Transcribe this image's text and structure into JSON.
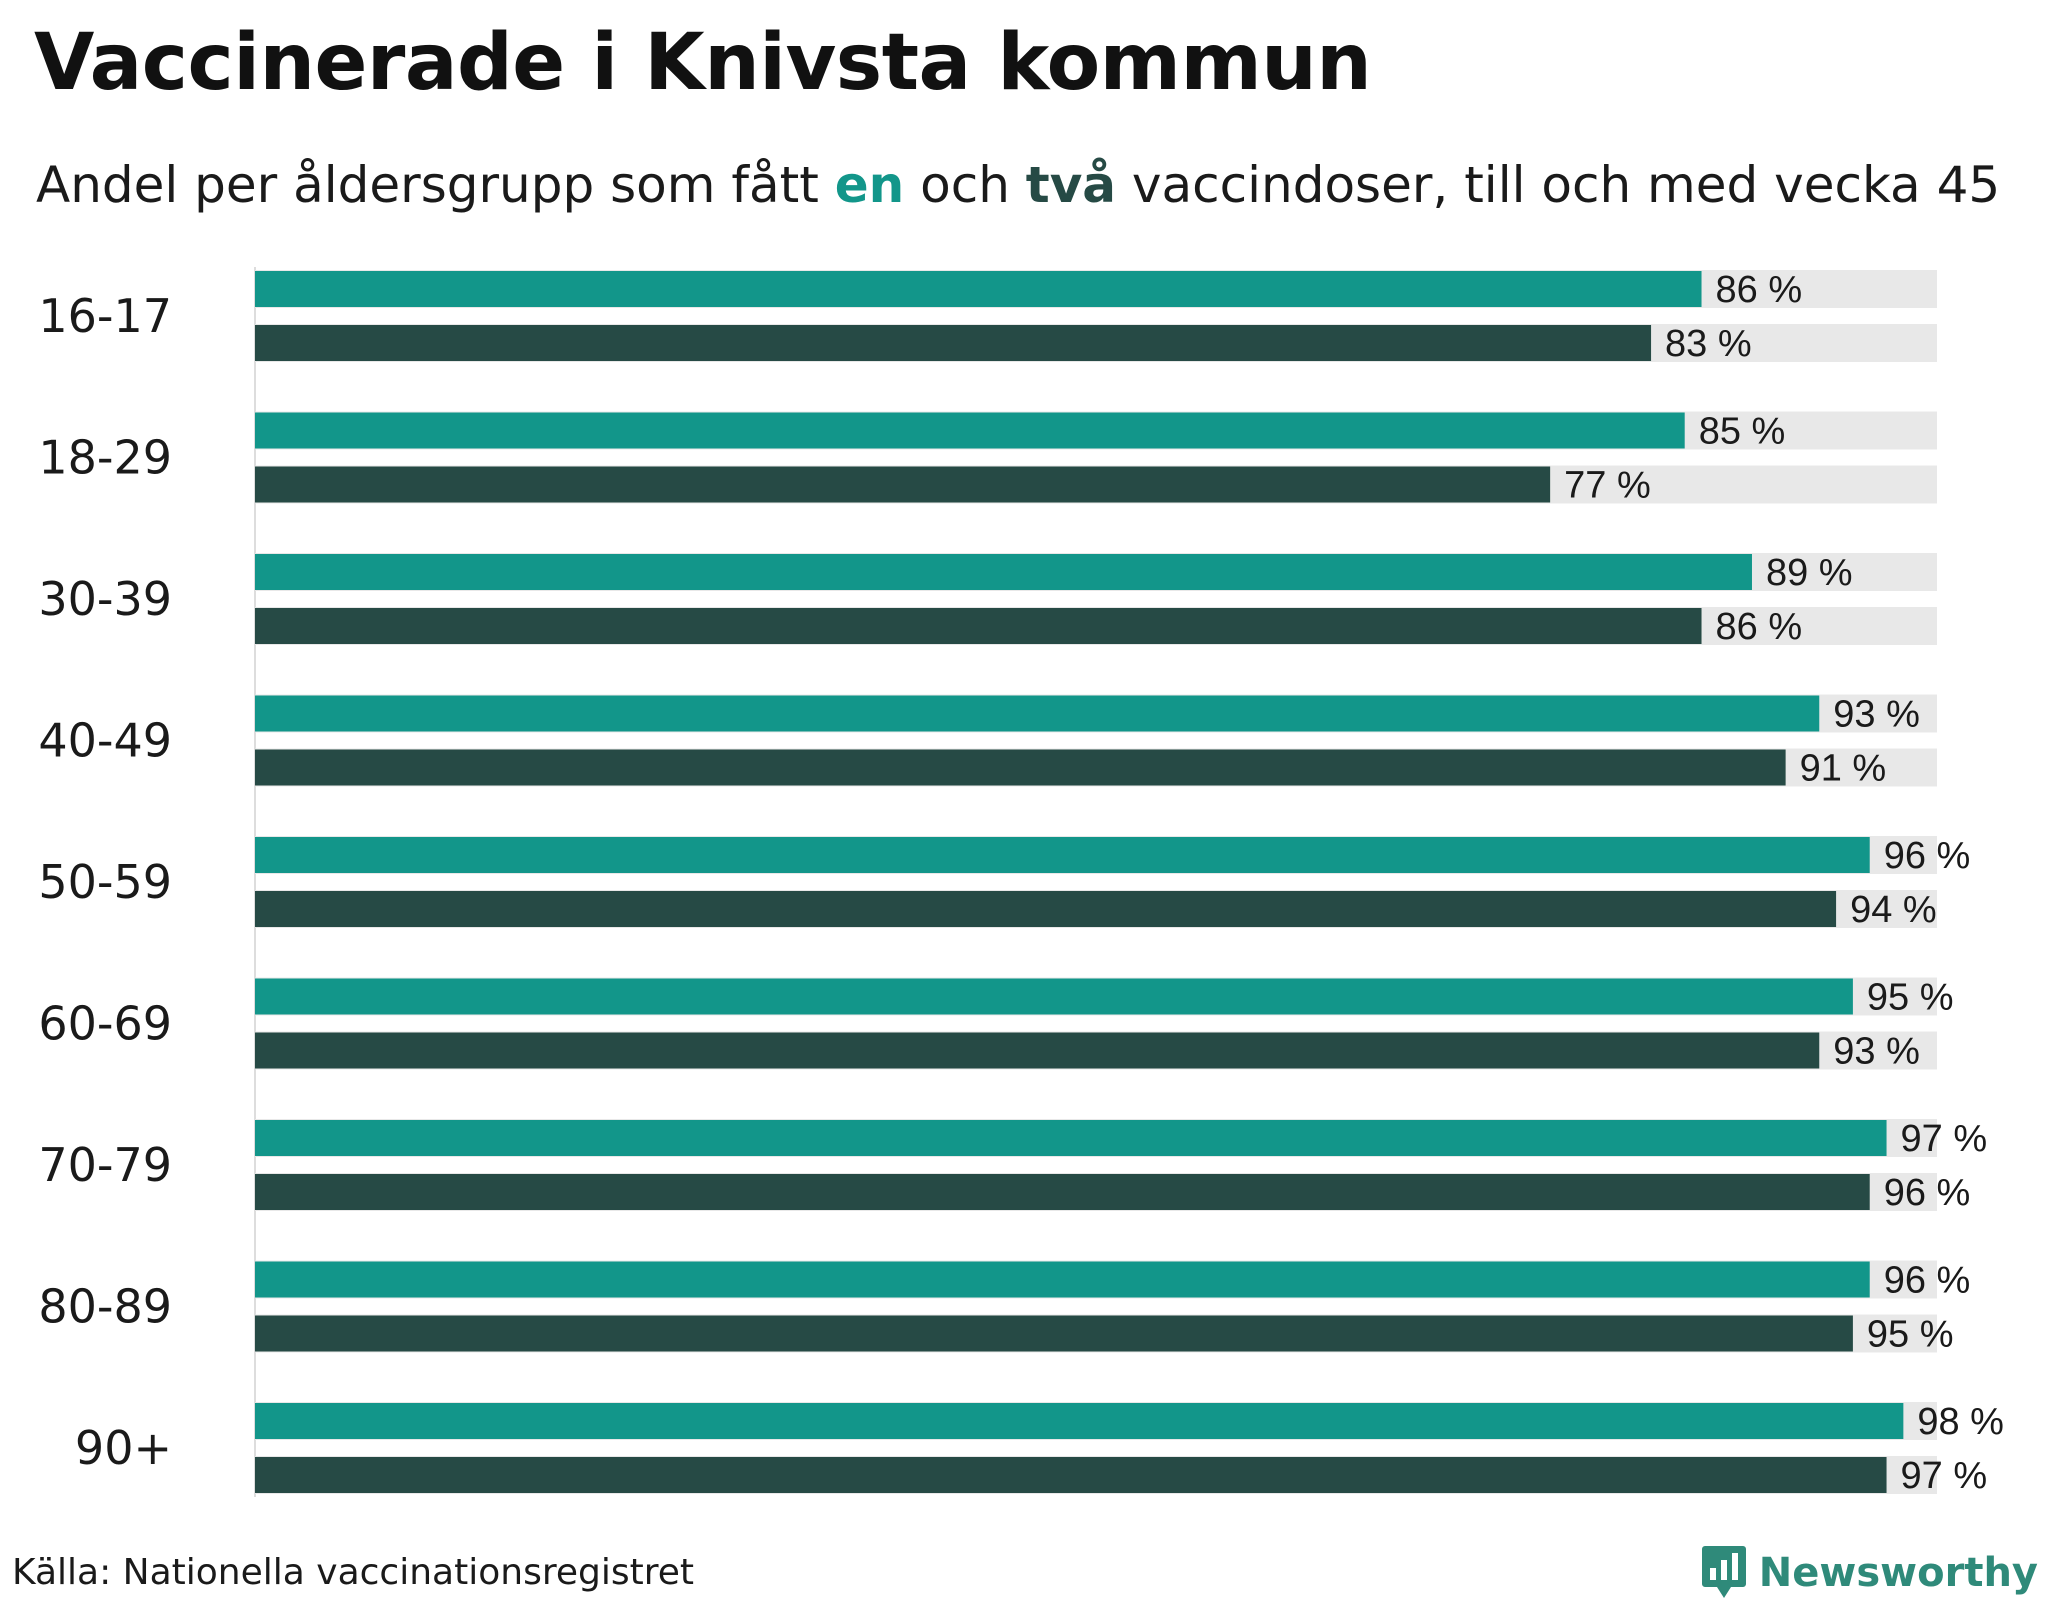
{
  "title": "Vaccinerade i Knivsta kommun",
  "subtitle": {
    "pre": "Andel per åldersgrupp som fått ",
    "en": "en",
    "mid": " och ",
    "tva": "två",
    "post": " vaccindoser, till och med vecka 45"
  },
  "source": "Källa: Nationella vaccinationsregistret",
  "brand": "Newsworthy",
  "colors": {
    "dose1": "#12968a",
    "dose2": "#264a45",
    "track": "#e8e8e8",
    "brand": "#2f8a7a"
  },
  "value_suffix": " %",
  "chart_data": {
    "type": "bar",
    "orientation": "horizontal",
    "categories": [
      "16-17",
      "18-29",
      "30-39",
      "40-49",
      "50-59",
      "60-69",
      "70-79",
      "80-89",
      "90+"
    ],
    "series": [
      {
        "values": [
          86,
          85,
          89,
          93,
          96,
          95,
          97,
          96,
          98
        ]
      },
      {
        "values": [
          83,
          77,
          86,
          91,
          94,
          93,
          96,
          95,
          97
        ]
      }
    ],
    "xlim": [
      0,
      100
    ]
  }
}
